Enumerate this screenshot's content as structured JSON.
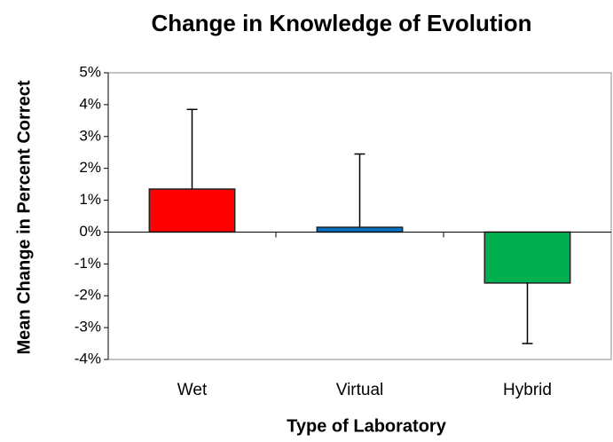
{
  "chart_data": {
    "type": "bar",
    "title": "Change in Knowledge of Evolution",
    "x_label": "Type of Laboratory",
    "y_label": "Mean Change in Percent Correct",
    "categories": [
      "Wet",
      "Virtual",
      "Hybrid"
    ],
    "values": [
      1.35,
      0.15,
      -1.6
    ],
    "errors": [
      2.5,
      2.3,
      1.9
    ],
    "colors": [
      "#ff0000",
      "#0070c0",
      "#00b050"
    ],
    "ylim": [
      -4,
      5
    ],
    "yticks": [
      {
        "value": -4,
        "label": "-4%"
      },
      {
        "value": -3,
        "label": "-3%"
      },
      {
        "value": -2,
        "label": "-2%"
      },
      {
        "value": -1,
        "label": "-1%"
      },
      {
        "value": 0,
        "label": "0%"
      },
      {
        "value": 1,
        "label": "1%"
      },
      {
        "value": 2,
        "label": "2%"
      },
      {
        "value": 3,
        "label": "3%"
      },
      {
        "value": 4,
        "label": "4%"
      },
      {
        "value": 5,
        "label": "5%"
      }
    ],
    "grid": false
  }
}
